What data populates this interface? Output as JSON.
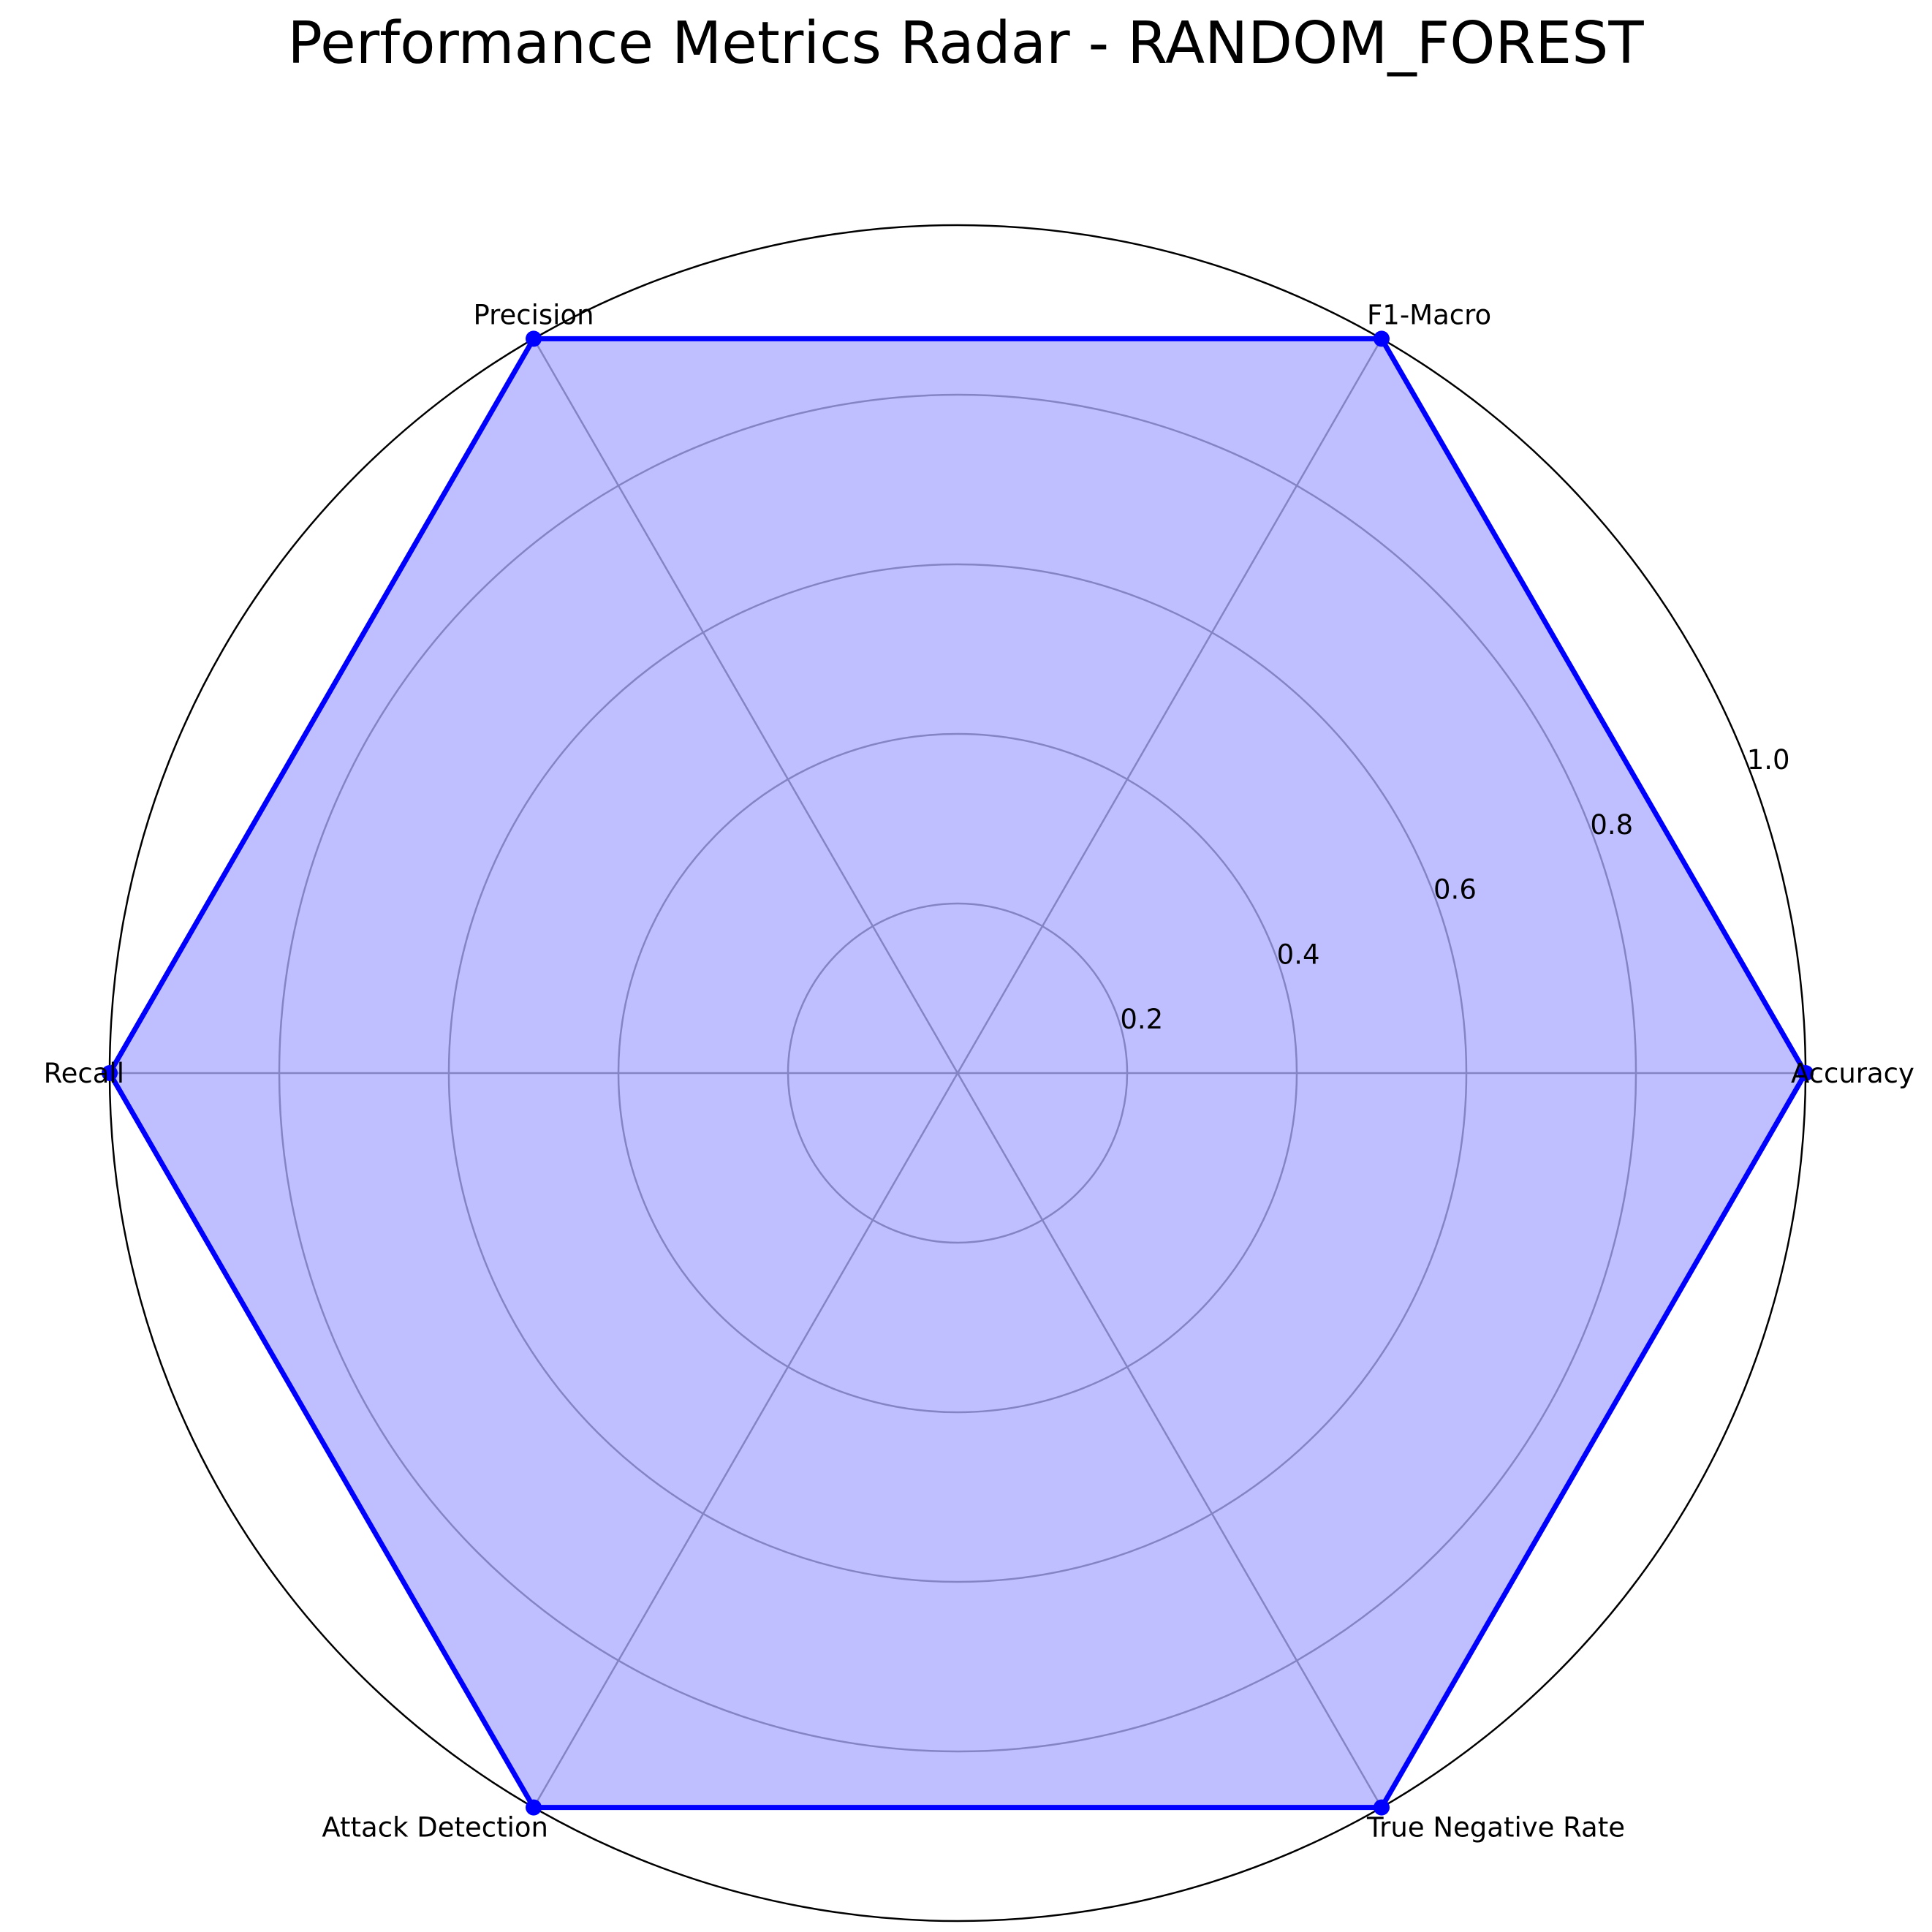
{
  "chart_data": {
    "type": "radar",
    "title": "Performance Metrics Radar - RANDOM_FOREST",
    "categories": [
      "Accuracy",
      "F1-Macro",
      "Precision",
      "Recall",
      "Attack Detection",
      "True Negative Rate"
    ],
    "series": [
      {
        "values": [
          1.0,
          1.0,
          1.0,
          1.0,
          1.0,
          1.0
        ]
      }
    ],
    "rlim": [
      0,
      1.0
    ],
    "rticks": [
      0.2,
      0.4,
      0.6,
      0.8,
      1.0
    ],
    "rtick_labels": [
      "0.2",
      "0.4",
      "0.6",
      "0.8",
      "1.0"
    ],
    "grid": true,
    "colors": {
      "line": "#0000ff",
      "fill": "#0000ff",
      "fill_alpha": 0.25,
      "grid": "#b0b0b0",
      "frame": "#000000"
    }
  }
}
